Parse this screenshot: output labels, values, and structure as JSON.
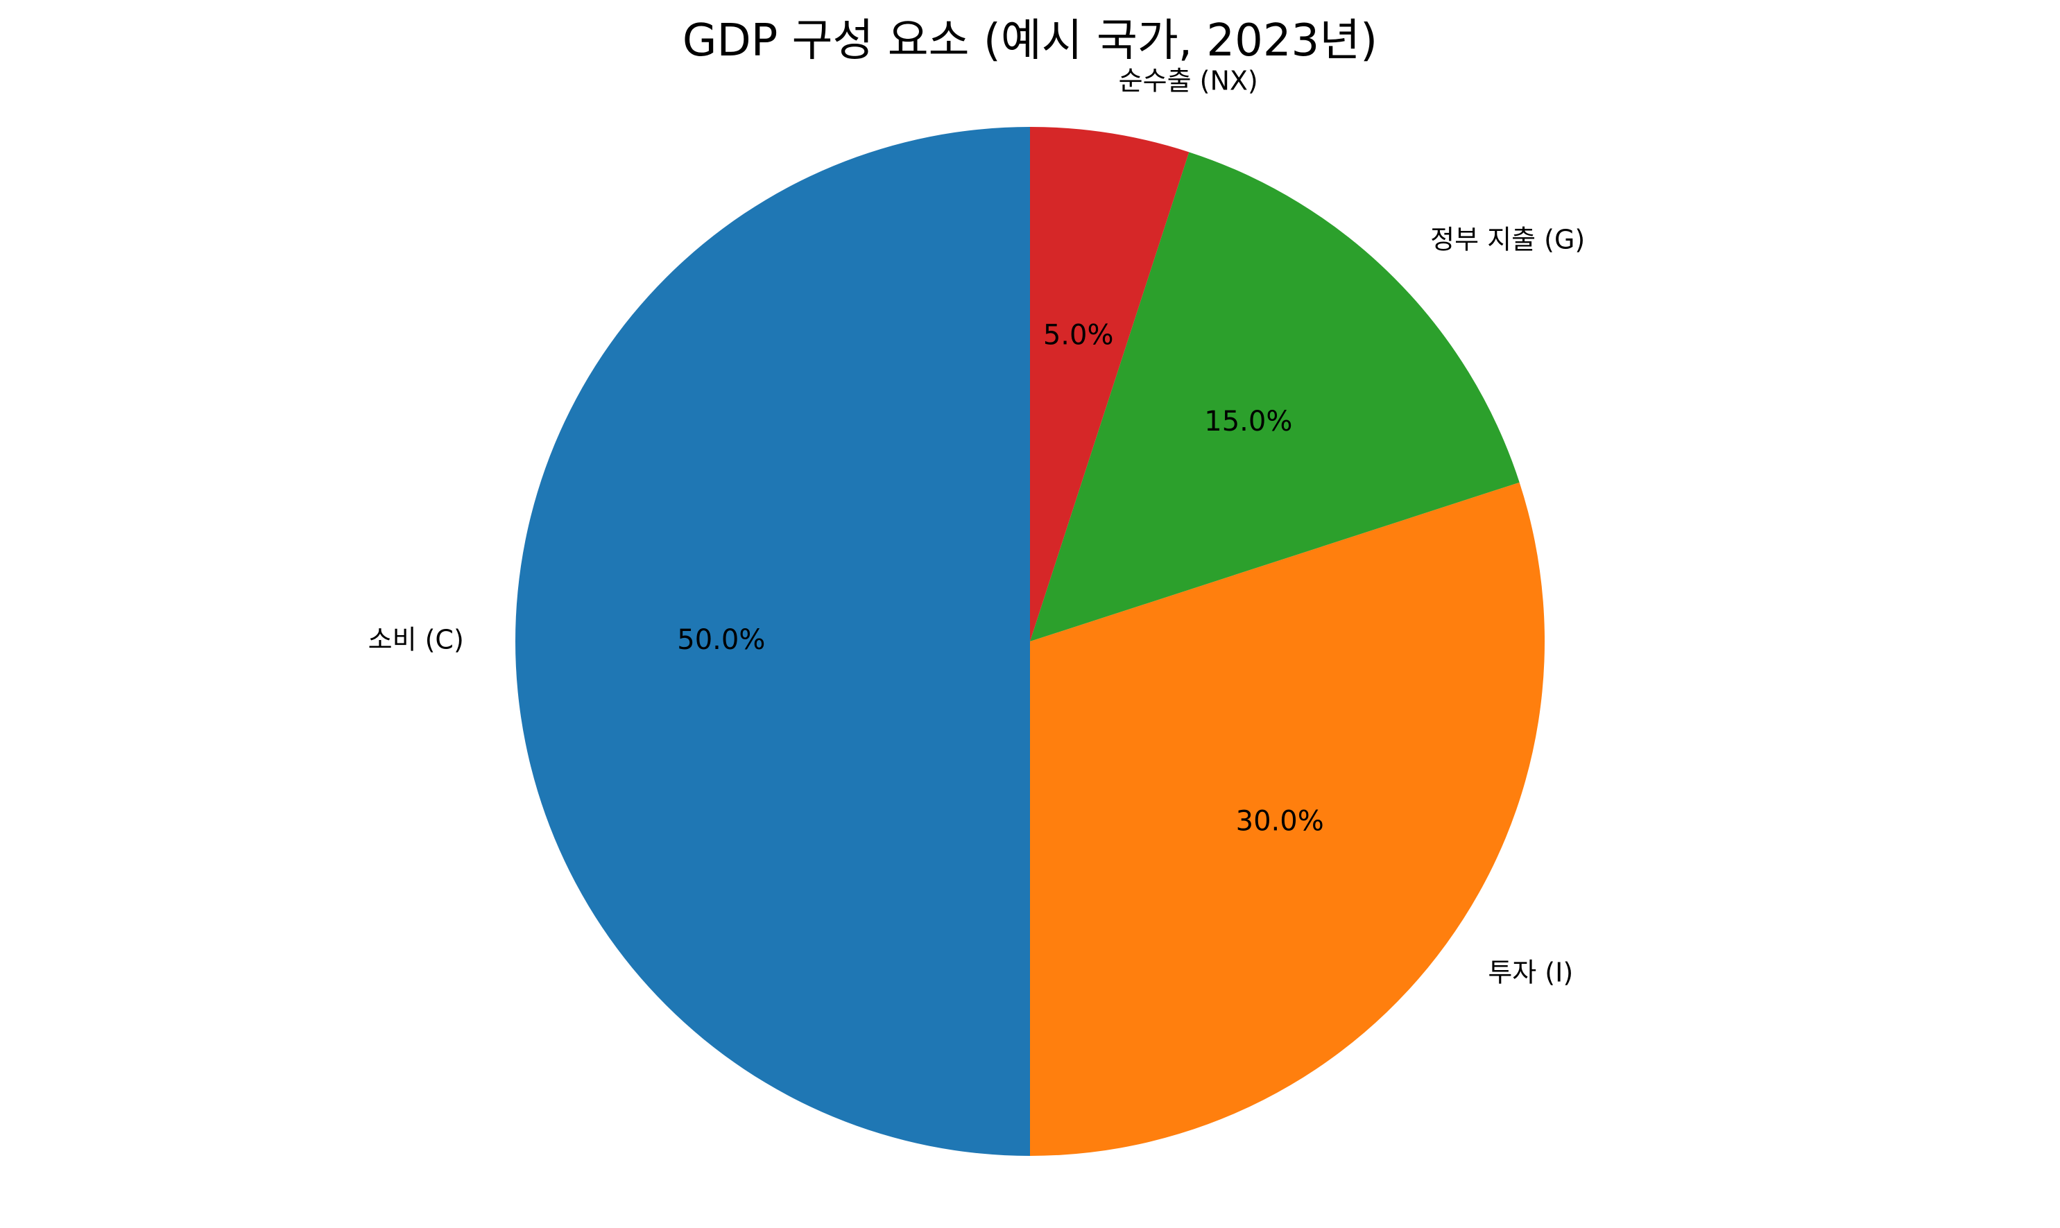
{
  "chart_data": {
    "type": "pie",
    "title": "GDP 구성 요소 (예시 국가, 2023년)",
    "labels": [
      "소비 (C)",
      "투자 (I)",
      "정부 지출 (G)",
      "순수출 (NX)"
    ],
    "values": [
      50.0,
      30.0,
      15.0,
      5.0
    ],
    "percent_labels": [
      "50.0%",
      "30.0%",
      "15.0%",
      "5.0%"
    ],
    "colors": [
      "#1f77b4",
      "#ff7f0e",
      "#2ca02c",
      "#d62728"
    ],
    "start_angle_deg": 90,
    "direction": "counterclockwise",
    "legend": "none"
  }
}
